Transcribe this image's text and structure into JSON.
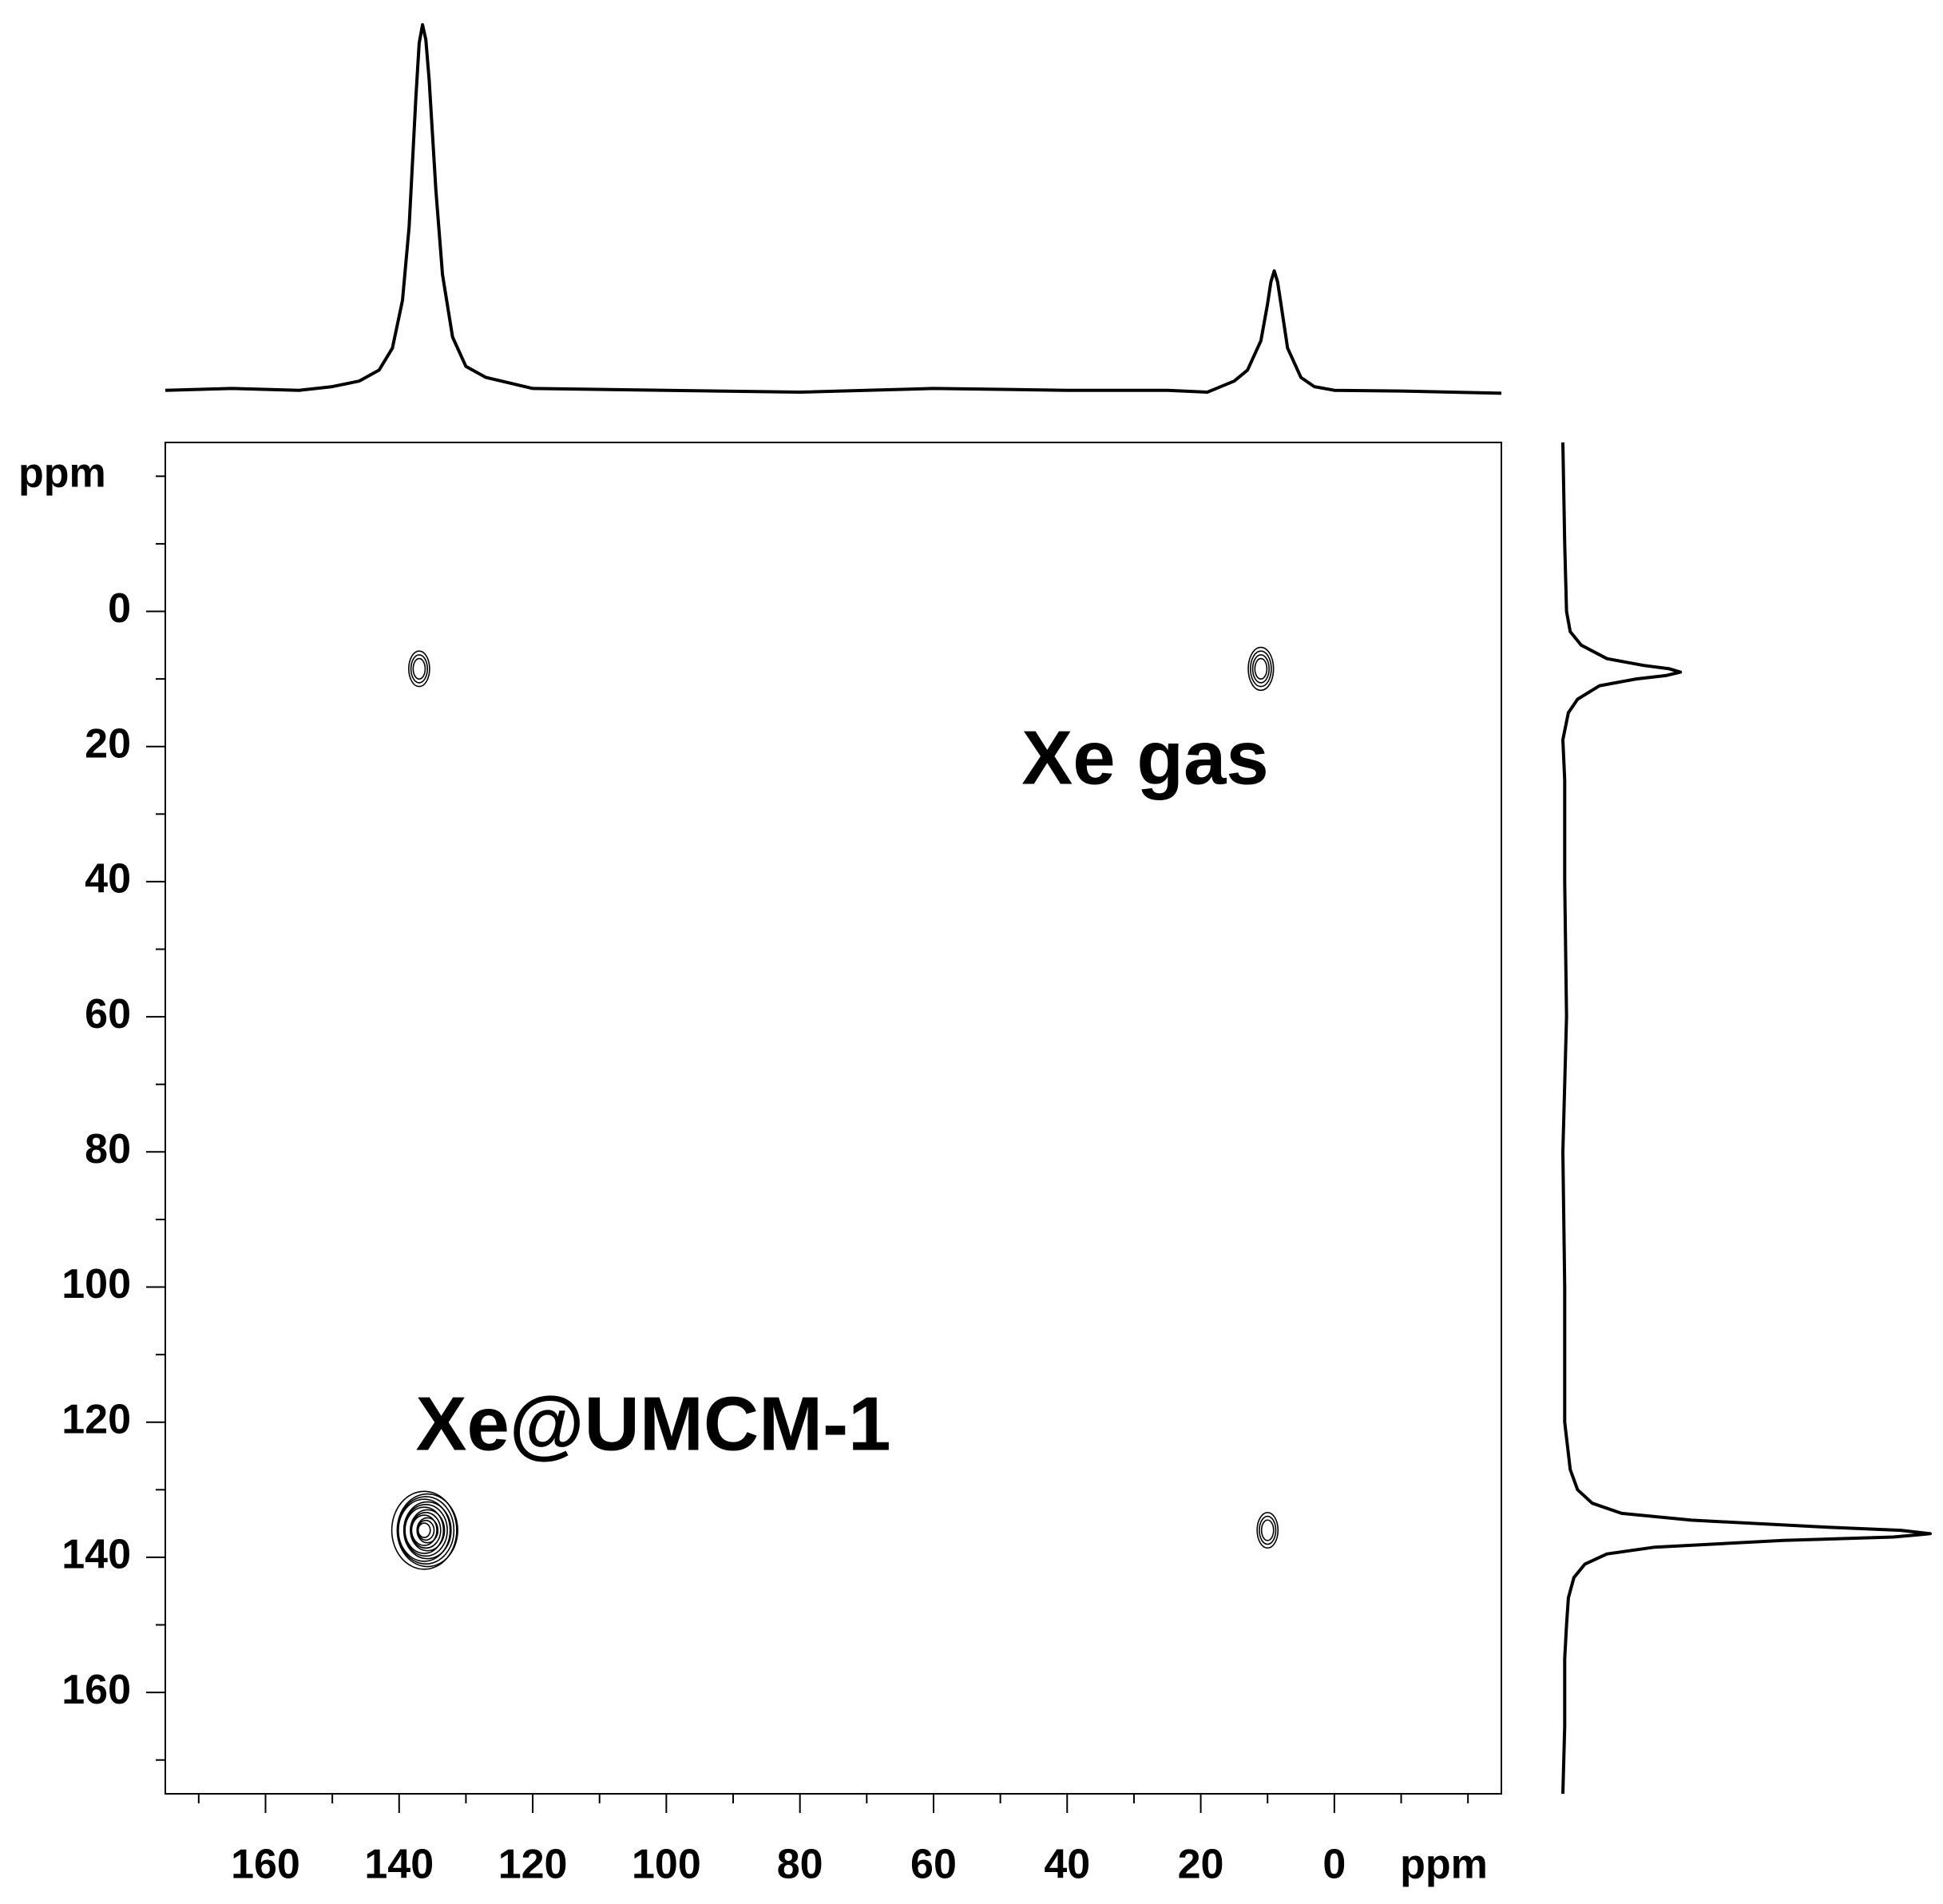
{
  "chart_data": {
    "type": "nmr2d",
    "xlim": [
      175,
      -25
    ],
    "ylim": [
      -25,
      175
    ],
    "xticks": [
      160,
      140,
      120,
      100,
      80,
      60,
      40,
      20,
      0
    ],
    "yticks": [
      0,
      20,
      40,
      60,
      80,
      100,
      120,
      140,
      160
    ],
    "xminorticks": [
      170,
      150,
      130,
      110,
      90,
      70,
      50,
      30,
      10,
      -10,
      -20
    ],
    "yminorticks": [
      -20,
      -10,
      10,
      30,
      50,
      70,
      90,
      110,
      130,
      150,
      170
    ],
    "xlabel": "ppm",
    "ylabel": "ppm",
    "color": "#000000",
    "annotations": [
      "Xe gas",
      "Xe@UMCM-1"
    ],
    "cross_peaks": {
      "x": [
        137,
        11,
        136,
        10
      ],
      "y": [
        8.5,
        8.5,
        136,
        136
      ],
      "intensity": [
        20,
        35,
        100,
        20
      ]
    },
    "top_projection": {
      "x": [
        175,
        165,
        155,
        150,
        146,
        143,
        141,
        139.5,
        138.5,
        137.5,
        137,
        136.5,
        136,
        135.5,
        134.5,
        133.5,
        132,
        130,
        127,
        120,
        100,
        80,
        60,
        40,
        25,
        19,
        15,
        13,
        11,
        10,
        9.5,
        9,
        8.5,
        8,
        7,
        5,
        3,
        0,
        -10,
        -25
      ],
      "values": [
        0.5,
        1,
        0.5,
        1.5,
        3,
        6,
        12,
        25,
        45,
        80,
        95,
        100,
        96,
        85,
        55,
        32,
        15,
        7,
        4,
        1,
        0.5,
        0,
        1,
        0.5,
        0.5,
        0,
        3,
        6,
        14,
        24,
        30,
        33,
        30,
        24,
        12,
        4,
        1.5,
        0.5,
        0.3,
        -0.3
      ]
    },
    "side_projection": {
      "y": [
        -25,
        -10,
        0,
        3,
        5,
        7,
        8,
        8.5,
        9,
        9.5,
        10,
        11,
        13,
        15,
        19,
        25,
        40,
        60,
        80,
        100,
        120,
        127,
        130,
        132,
        133.5,
        134.5,
        135.5,
        136,
        136.5,
        137,
        137.5,
        138.5,
        139.5,
        141,
        143,
        146,
        150,
        155,
        165,
        175
      ],
      "values": [
        0,
        0.5,
        1,
        2,
        5,
        12,
        22,
        29,
        32,
        28,
        20,
        10,
        4,
        1.5,
        0,
        0.5,
        0.5,
        1,
        0,
        0.5,
        0.5,
        2,
        4,
        8,
        16,
        35,
        70,
        92,
        100,
        90,
        60,
        25,
        12,
        6,
        3,
        1.5,
        1,
        0.5,
        0.5,
        0
      ]
    }
  }
}
